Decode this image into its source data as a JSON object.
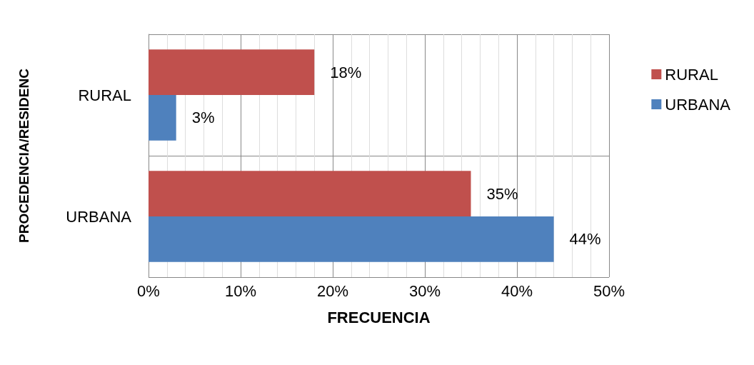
{
  "chart_data": {
    "type": "bar",
    "orientation": "horizontal",
    "xlabel": "FRECUENCIA",
    "ylabel": "PROCEDENCIA/RESIDENC",
    "categories": [
      "RURAL",
      "URBANA"
    ],
    "series": [
      {
        "name": "RURAL",
        "color": "#c0504d",
        "values": [
          18,
          35
        ],
        "value_labels": [
          "18%",
          "35%"
        ]
      },
      {
        "name": "URBANA",
        "color": "#4f81bd",
        "values": [
          3,
          44
        ],
        "value_labels": [
          "3%",
          "44%"
        ]
      }
    ],
    "xlim": [
      0,
      50
    ],
    "xticks": [
      {
        "value": 0,
        "label": "0%"
      },
      {
        "value": 10,
        "label": "10%"
      },
      {
        "value": 20,
        "label": "20%"
      },
      {
        "value": 30,
        "label": "30%"
      },
      {
        "value": 40,
        "label": "40%"
      },
      {
        "value": 50,
        "label": "50%"
      }
    ],
    "grid": true,
    "legend": "right"
  }
}
